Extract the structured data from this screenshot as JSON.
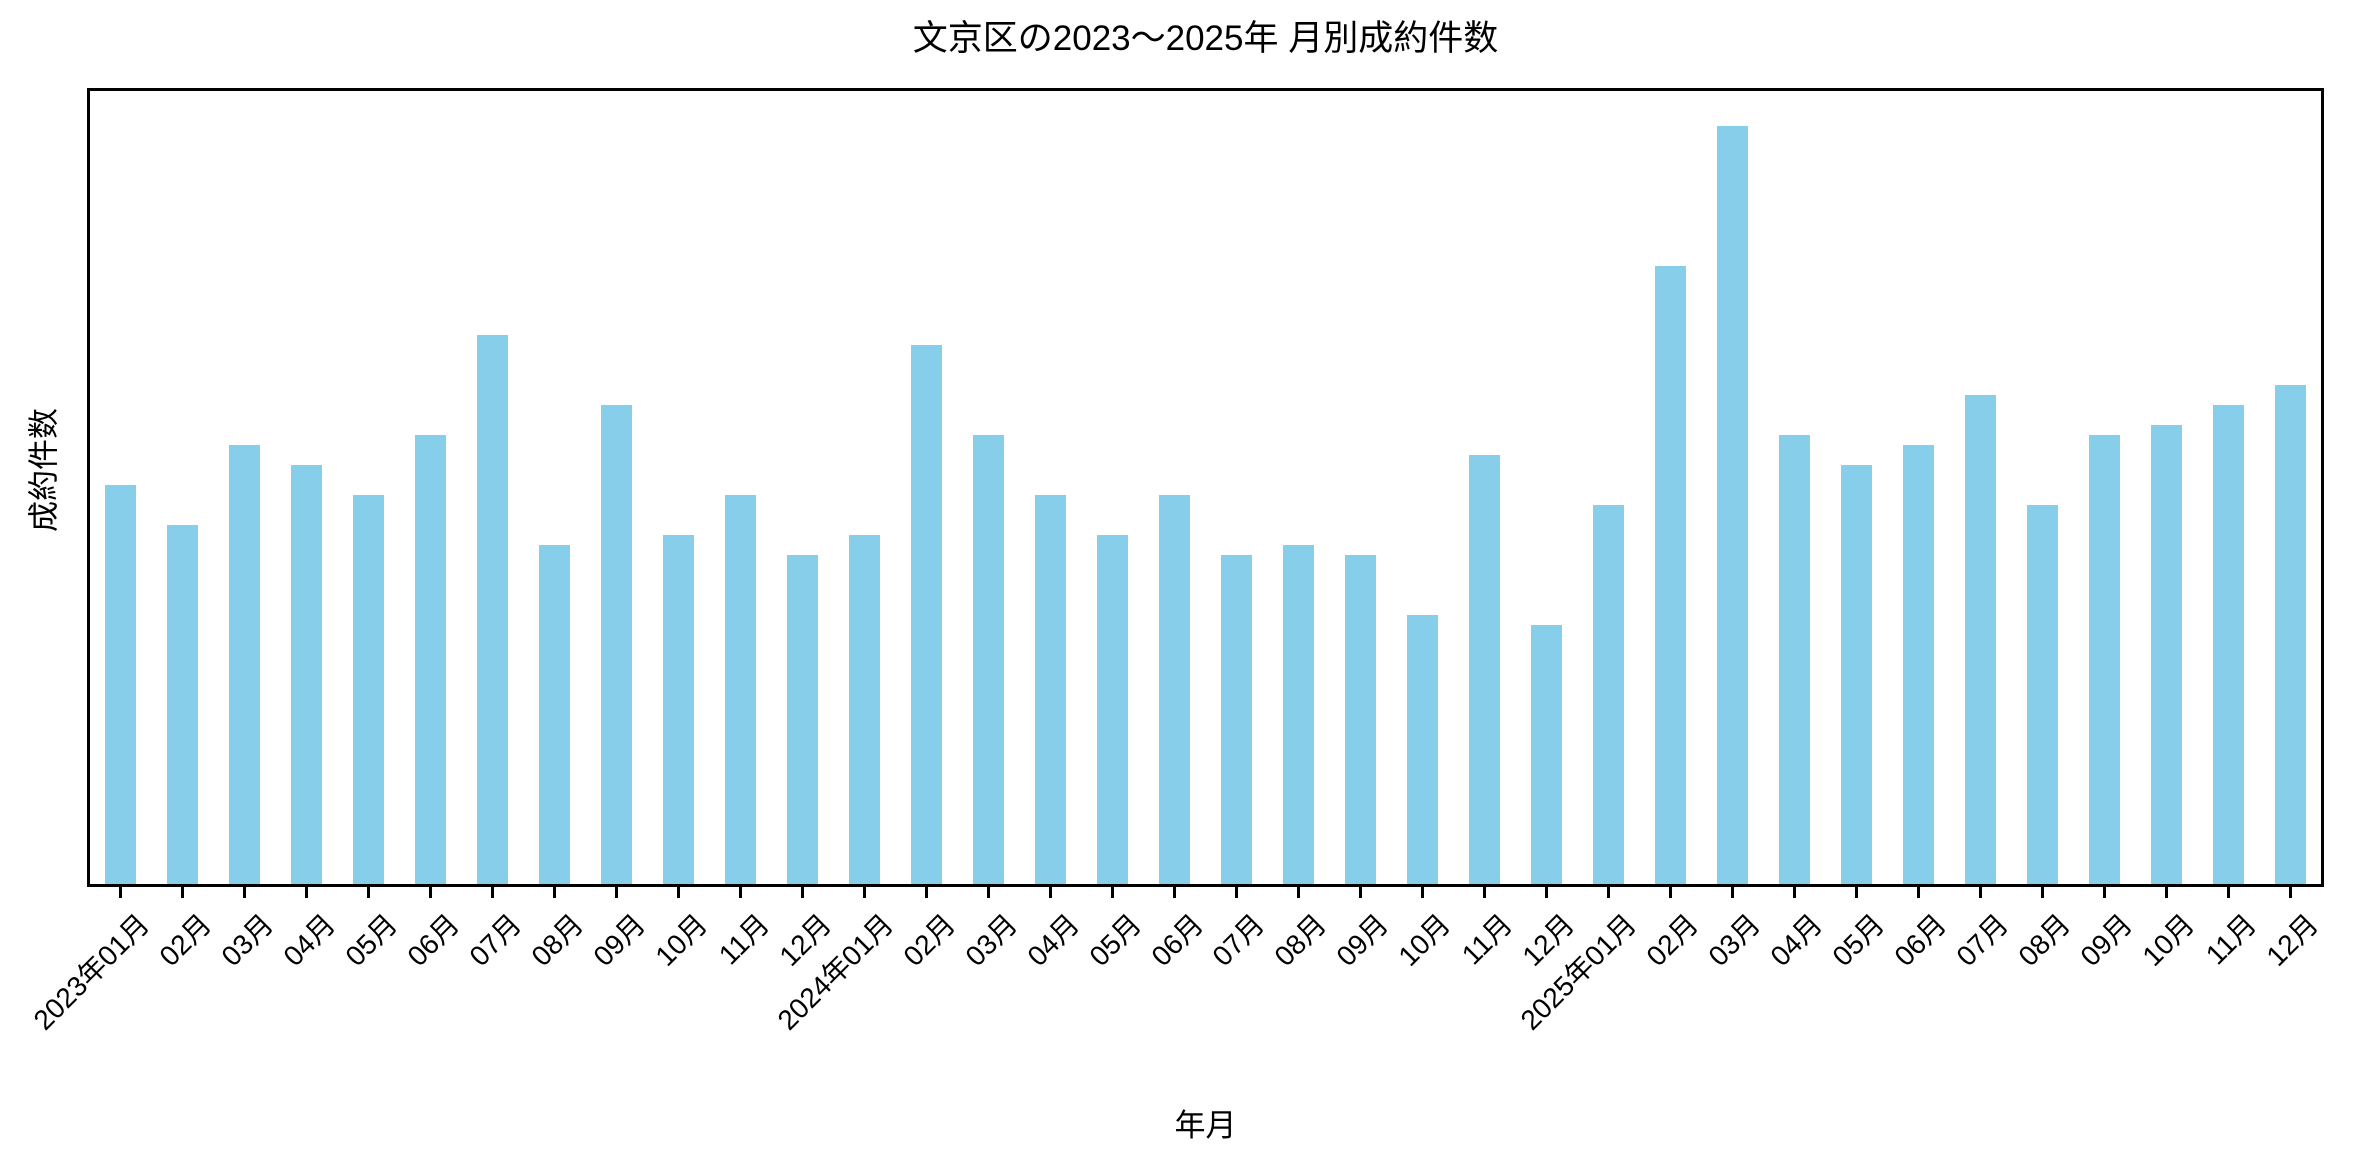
{
  "chart_data": {
    "type": "bar",
    "title": "文京区の2023〜2025年 月別成約件数",
    "xlabel": "年月",
    "ylabel": "成約件数",
    "categories": [
      "2023年01月",
      "02月",
      "03月",
      "04月",
      "05月",
      "06月",
      "07月",
      "08月",
      "09月",
      "10月",
      "11月",
      "12月",
      "2024年01月",
      "02月",
      "03月",
      "04月",
      "05月",
      "06月",
      "07月",
      "08月",
      "09月",
      "10月",
      "11月",
      "12月",
      "2025年01月",
      "02月",
      "03月",
      "04月",
      "05月",
      "06月",
      "07月",
      "08月",
      "09月",
      "10月",
      "11月",
      "12月"
    ],
    "values": [
      40,
      36,
      44,
      42,
      39,
      45,
      55,
      34,
      48,
      35,
      39,
      33,
      35,
      54,
      45,
      39,
      35,
      39,
      33,
      34,
      33,
      27,
      43,
      26,
      38,
      62,
      76,
      45,
      42,
      44,
      49,
      38,
      45,
      46,
      48,
      50
    ],
    "ylim": [
      0,
      79.5
    ],
    "xtick_rotation_deg": 45,
    "y_axis_tick_labels": "none",
    "grid": false,
    "legend": "none",
    "bar_color": "#87CEEB",
    "axis_color": "#000000",
    "text_color": "#000000",
    "background_color": "#ffffff"
  }
}
